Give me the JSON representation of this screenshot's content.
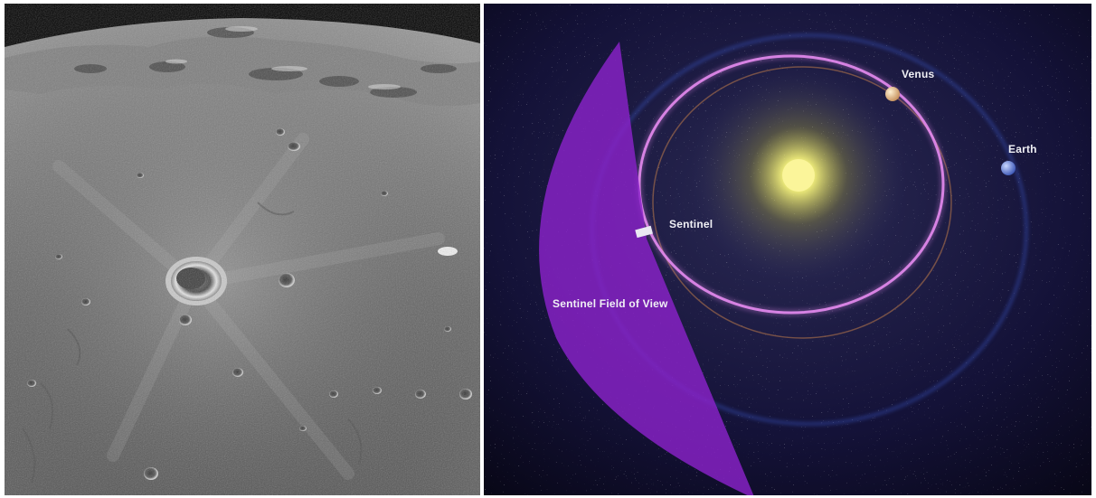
{
  "panels": {
    "moon": {
      "name": "lunar-surface-photo"
    },
    "space": {
      "name": "solar-system-diagram",
      "labels": {
        "venus": "Venus",
        "earth": "Earth",
        "sentinel": "Sentinel",
        "field_of_view": "Sentinel Field of View"
      },
      "colors": {
        "sun": "#f3f07a",
        "venus_orbit": "#e58bf0",
        "earth_orbit": "#3a58c8",
        "field_of_view": "#8a22c9",
        "background": "#0d0a2a"
      }
    }
  }
}
